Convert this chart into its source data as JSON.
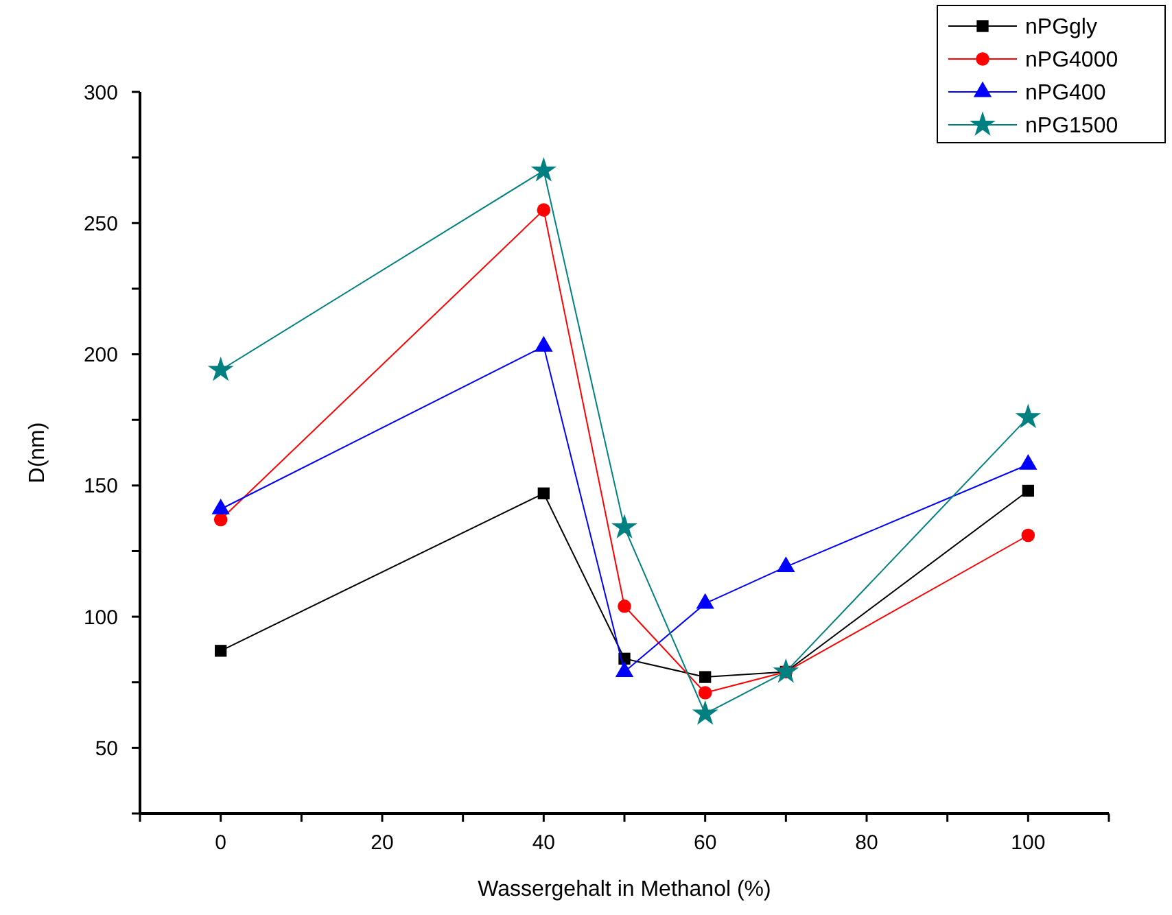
{
  "chart_data": {
    "type": "line",
    "xlabel": "Wassergehalt in Methanol (%)",
    "ylabel": "D(nm)",
    "x": [
      0,
      40,
      50,
      60,
      70,
      100
    ],
    "series": [
      {
        "name": "nPGgly",
        "color": "#000000",
        "marker": "square",
        "values": [
          87,
          147,
          84,
          77,
          79,
          148
        ]
      },
      {
        "name": "nPG4000",
        "color": "#ff0000",
        "marker": "circle",
        "values": [
          137,
          255,
          104,
          71,
          79,
          131
        ]
      },
      {
        "name": "nPG400",
        "color": "#0000ff",
        "marker": "triangle",
        "values": [
          141,
          203,
          79,
          105,
          119,
          158
        ]
      },
      {
        "name": "nPG1500",
        "color": "#008080",
        "marker": "star",
        "values": [
          194,
          270,
          134,
          63,
          79,
          176
        ]
      }
    ],
    "xlim": [
      -10,
      110
    ],
    "xticks": [
      {
        "value": -10,
        "label": null
      },
      0,
      {
        "value": 10,
        "label": null
      },
      20,
      {
        "value": 30,
        "label": null
      },
      40,
      {
        "value": 50,
        "label": null
      },
      60,
      {
        "value": 70,
        "label": null
      },
      80,
      {
        "value": 90,
        "label": null
      },
      100,
      {
        "value": 110,
        "label": null
      }
    ],
    "ylim": [
      25,
      300
    ],
    "yticks": [
      {
        "value": 25,
        "label": null
      },
      50,
      {
        "value": 75,
        "label": null
      },
      100,
      {
        "value": 125,
        "label": null
      },
      150,
      {
        "value": 175,
        "label": null
      },
      200,
      {
        "value": 225,
        "label": null
      },
      250,
      {
        "value": 275,
        "label": null
      },
      300
    ],
    "grid": false,
    "legend": "top right",
    "line_style": "solid"
  }
}
